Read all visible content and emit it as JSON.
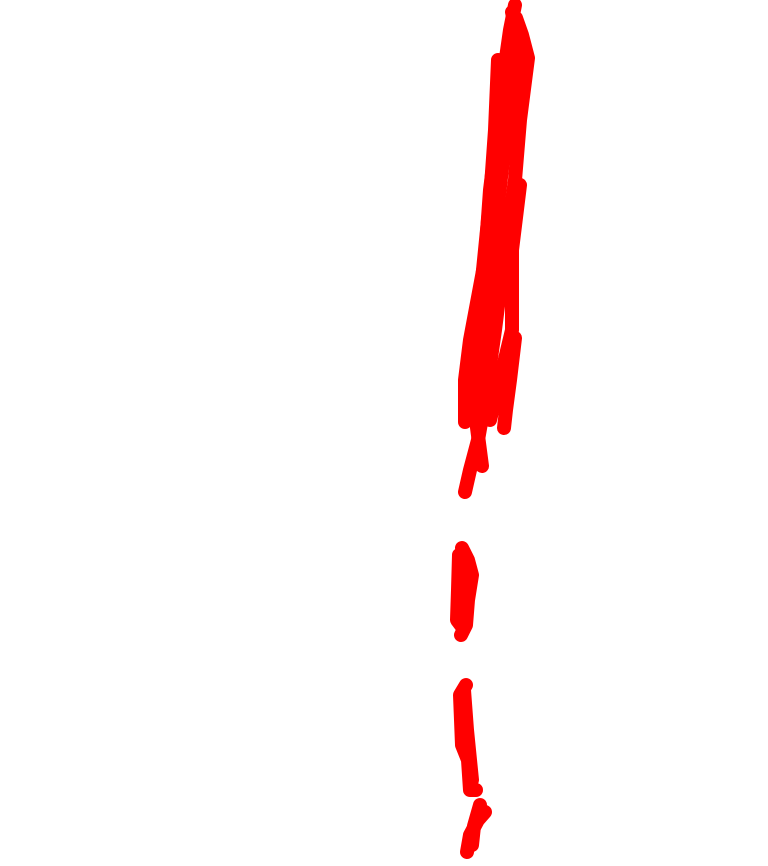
{
  "canvas": {
    "background_color": "#ffffff",
    "stroke_color": "#ff0000"
  }
}
